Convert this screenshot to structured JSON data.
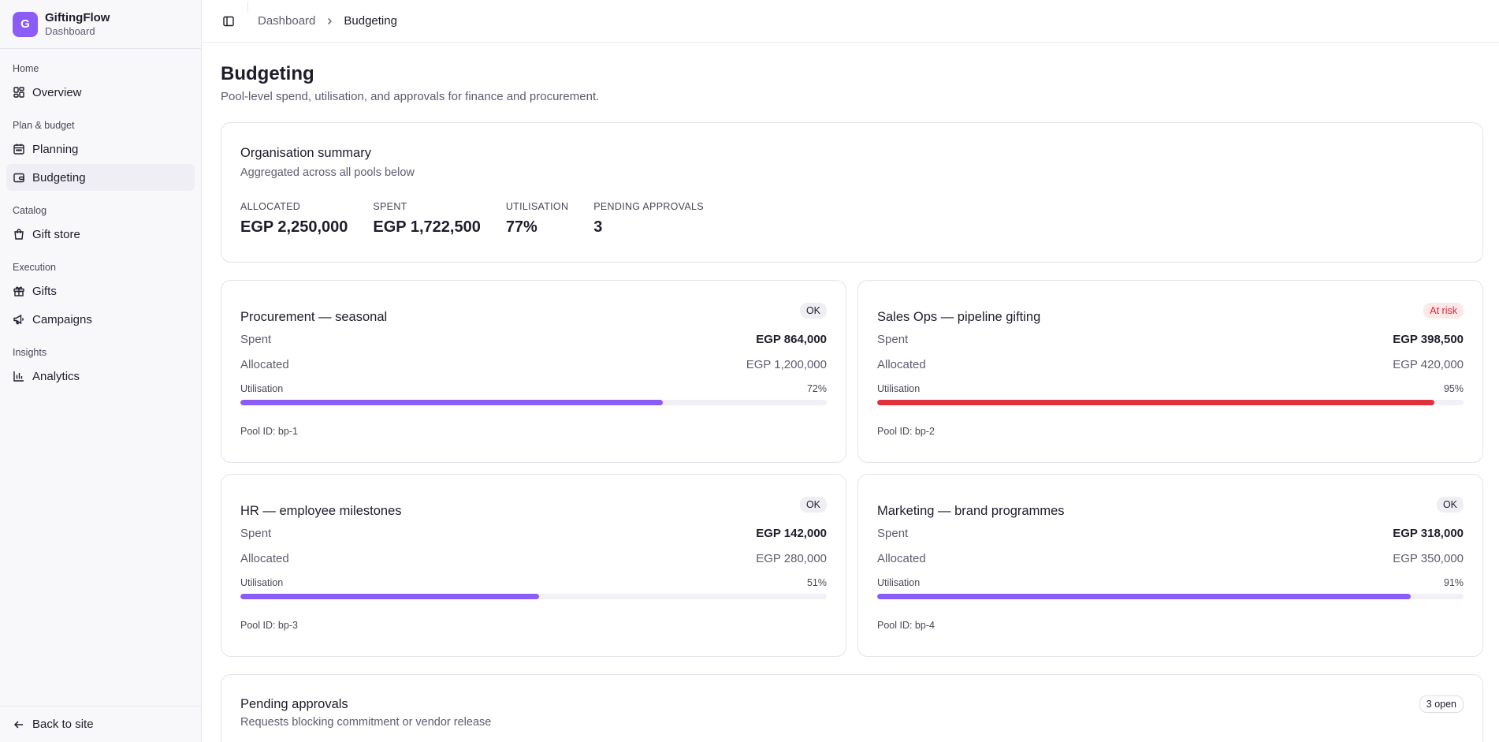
{
  "brand": {
    "logo_letter": "G",
    "name": "GiftingFlow",
    "sub": "Dashboard",
    "accent": "#8b5cf6"
  },
  "sidebar": {
    "groups": [
      {
        "label": "Home",
        "items": [
          {
            "label": "Overview",
            "icon": "layout-dashboard-icon"
          }
        ]
      },
      {
        "label": "Plan & budget",
        "items": [
          {
            "label": "Planning",
            "icon": "calendar-icon"
          },
          {
            "label": "Budgeting",
            "icon": "wallet-icon",
            "active": true
          }
        ]
      },
      {
        "label": "Catalog",
        "items": [
          {
            "label": "Gift store",
            "icon": "shopping-bag-icon"
          }
        ]
      },
      {
        "label": "Execution",
        "items": [
          {
            "label": "Gifts",
            "icon": "gift-icon"
          },
          {
            "label": "Campaigns",
            "icon": "megaphone-icon"
          }
        ]
      },
      {
        "label": "Insights",
        "items": [
          {
            "label": "Analytics",
            "icon": "bar-chart-icon"
          }
        ]
      }
    ],
    "footer": {
      "label": "Back to site",
      "icon": "arrow-left-icon"
    }
  },
  "breadcrumb": {
    "parent": "Dashboard",
    "current": "Budgeting"
  },
  "page": {
    "title": "Budgeting",
    "subtitle": "Pool-level spend, utilisation, and approvals for finance and procurement."
  },
  "summary": {
    "title": "Organisation summary",
    "subtitle": "Aggregated across all pools below",
    "stats": [
      {
        "label": "ALLOCATED",
        "value": "EGP 2,250,000"
      },
      {
        "label": "SPENT",
        "value": "EGP 1,722,500"
      },
      {
        "label": "UTILISATION",
        "value": "77%"
      },
      {
        "label": "PENDING APPROVALS",
        "value": "3"
      }
    ]
  },
  "pools": [
    {
      "name": "Procurement — seasonal",
      "status": "OK",
      "spent_label": "Spent",
      "spent": "EGP 864,000",
      "allocated_label": "Allocated",
      "allocated": "EGP 1,200,000",
      "util_label": "Utilisation",
      "util": "72%",
      "util_fraction": 0.72,
      "bar_color": "#8b5cf6",
      "pool_id": "Pool ID: bp-1"
    },
    {
      "name": "Sales Ops — pipeline gifting",
      "status": "At risk",
      "spent_label": "Spent",
      "spent": "EGP 398,500",
      "allocated_label": "Allocated",
      "allocated": "EGP 420,000",
      "util_label": "Utilisation",
      "util": "95%",
      "util_fraction": 0.95,
      "bar_color": "#e0303e",
      "pool_id": "Pool ID: bp-2"
    },
    {
      "name": "HR — employee milestones",
      "status": "OK",
      "spent_label": "Spent",
      "spent": "EGP 142,000",
      "allocated_label": "Allocated",
      "allocated": "EGP 280,000",
      "util_label": "Utilisation",
      "util": "51%",
      "util_fraction": 0.51,
      "bar_color": "#8b5cf6",
      "pool_id": "Pool ID: bp-3"
    },
    {
      "name": "Marketing — brand programmes",
      "status": "OK",
      "spent_label": "Spent",
      "spent": "EGP 318,000",
      "allocated_label": "Allocated",
      "allocated": "EGP 350,000",
      "util_label": "Utilisation",
      "util": "91%",
      "util_fraction": 0.91,
      "bar_color": "#8b5cf6",
      "pool_id": "Pool ID: bp-4"
    }
  ],
  "pending": {
    "title": "Pending approvals",
    "subtitle": "Requests blocking commitment or vendor release",
    "badge": "3 open"
  }
}
